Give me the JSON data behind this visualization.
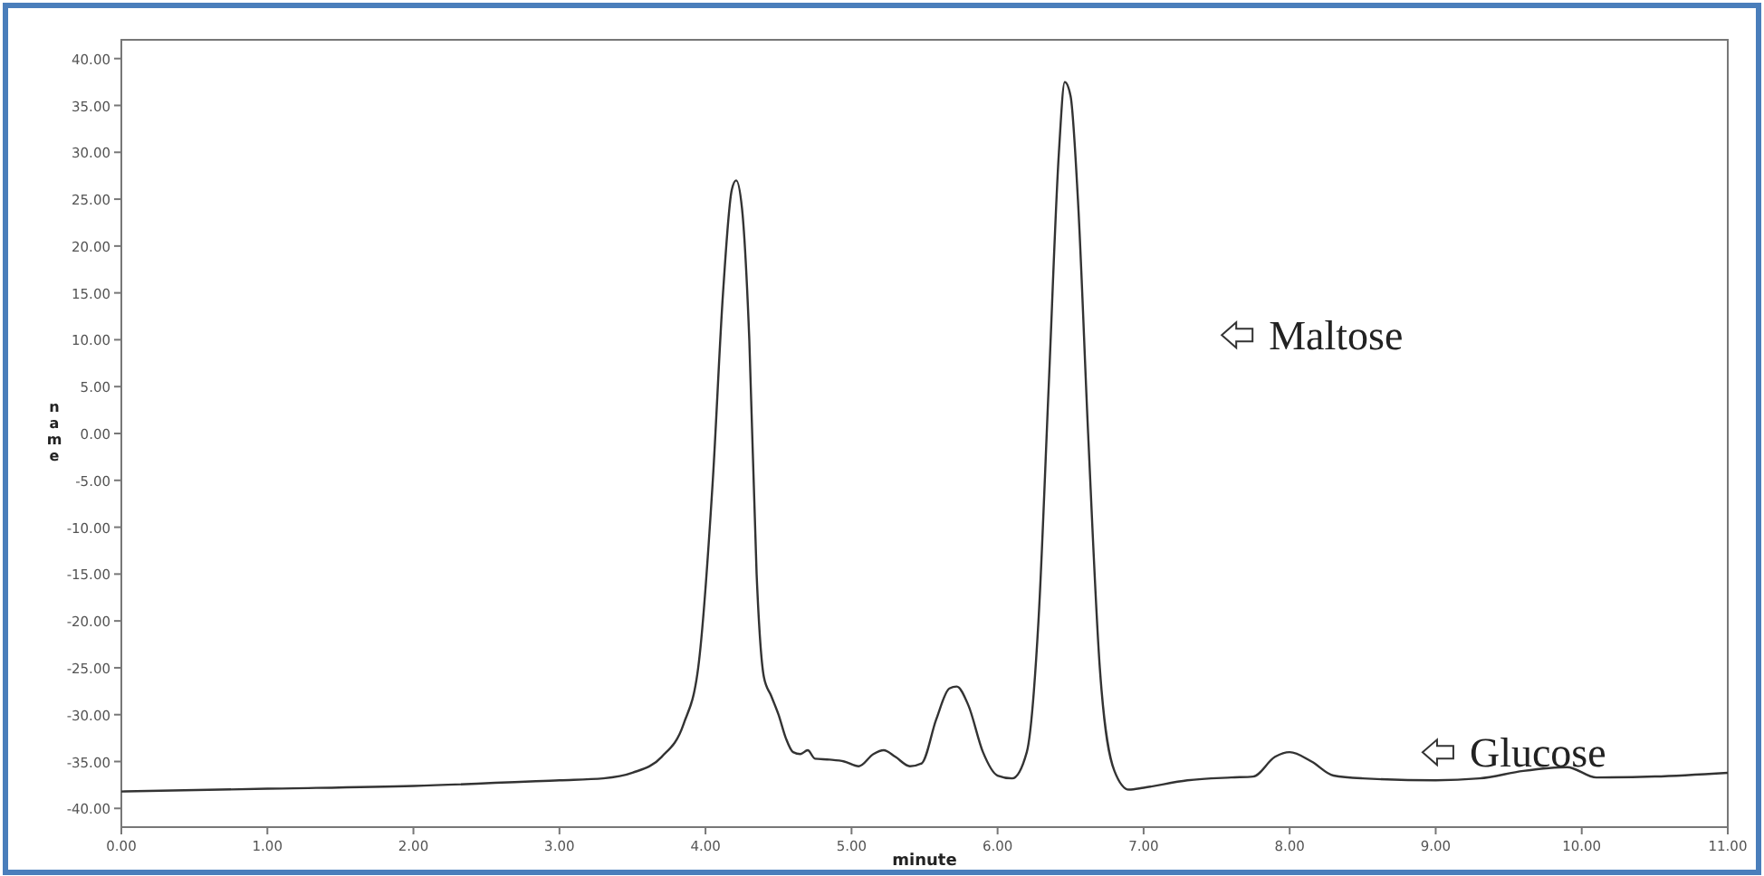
{
  "chart_data": {
    "type": "line",
    "xlabel": "minute",
    "ylabel": "name",
    "xlim": [
      0,
      11
    ],
    "ylim": [
      -42,
      42
    ],
    "xticks": [
      {
        "value": 0,
        "label": "0.00"
      },
      {
        "value": 1,
        "label": "1.00"
      },
      {
        "value": 2,
        "label": "2.00"
      },
      {
        "value": 3,
        "label": "3.00"
      },
      {
        "value": 4,
        "label": "4.00"
      },
      {
        "value": 5,
        "label": "5.00"
      },
      {
        "value": 6,
        "label": "6.00"
      },
      {
        "value": 7,
        "label": "7.00"
      },
      {
        "value": 8,
        "label": "8.00"
      },
      {
        "value": 9,
        "label": "9.00"
      },
      {
        "value": 10,
        "label": "10.00"
      },
      {
        "value": 11,
        "label": "11.00"
      }
    ],
    "yticks": [
      {
        "value": 40,
        "label": "40.00"
      },
      {
        "value": 35,
        "label": "35.00"
      },
      {
        "value": 30,
        "label": "30.00"
      },
      {
        "value": 25,
        "label": "25.00"
      },
      {
        "value": 20,
        "label": "20.00"
      },
      {
        "value": 15,
        "label": "15.00"
      },
      {
        "value": 10,
        "label": "10.00"
      },
      {
        "value": 5,
        "label": "5.00"
      },
      {
        "value": 0,
        "label": "0.00"
      },
      {
        "value": -5,
        "label": "-5.00"
      },
      {
        "value": -10,
        "label": "-10.00"
      },
      {
        "value": -15,
        "label": "-15.00"
      },
      {
        "value": -20,
        "label": "-20.00"
      },
      {
        "value": -25,
        "label": "-25.00"
      },
      {
        "value": -30,
        "label": "-30.00"
      },
      {
        "value": -35,
        "label": "-35.00"
      },
      {
        "value": -40,
        "label": "-40.00"
      }
    ],
    "grid": false,
    "marker": "none",
    "line_style": "solid",
    "series": [
      {
        "color": "#333333",
        "x": [
          0,
          1,
          2,
          3,
          3.3,
          3.5,
          3.7,
          3.85,
          3.95,
          4.05,
          4.12,
          4.18,
          4.21,
          4.25,
          4.3,
          4.35,
          4.4,
          4.45,
          4.5,
          4.55,
          4.6,
          4.65,
          4.7,
          4.75,
          4.85,
          4.95,
          5.05,
          5.15,
          5.22,
          5.3,
          5.4,
          5.48,
          5.58,
          5.67,
          5.72,
          5.8,
          5.9,
          6,
          6.1,
          6.2,
          6.28,
          6.35,
          6.42,
          6.46,
          6.5,
          6.55,
          6.62,
          6.7,
          6.8,
          6.9,
          7,
          7.3,
          7.6,
          7.75,
          7.9,
          8,
          8.15,
          8.3,
          8.5,
          9,
          9.3,
          9.6,
          9.9,
          10.1,
          10.5,
          11
        ],
        "values": [
          -38.2,
          -37.9,
          -37.6,
          -37,
          -36.8,
          -36.2,
          -34.5,
          -31,
          -25,
          -5,
          15,
          26,
          27,
          24,
          10,
          -15,
          -26,
          -28,
          -30,
          -32.5,
          -34,
          -34.2,
          -33.8,
          -34.7,
          -34.8,
          -35,
          -35.5,
          -34.2,
          -33.8,
          -34.5,
          -35.5,
          -35.2,
          -30.5,
          -27.2,
          -27,
          -29,
          -34,
          -36.5,
          -36.8,
          -34,
          -20,
          5,
          30,
          37.5,
          36,
          25,
          0,
          -25,
          -36,
          -38,
          -37.8,
          -37,
          -36.7,
          -36.6,
          -34.5,
          -34,
          -35,
          -36.5,
          -36.8,
          -37,
          -36.8,
          -36,
          -35.6,
          -36.7,
          -36.6,
          -36.2
        ]
      }
    ],
    "annotations": [
      "Maltose",
      "Glucose"
    ]
  }
}
